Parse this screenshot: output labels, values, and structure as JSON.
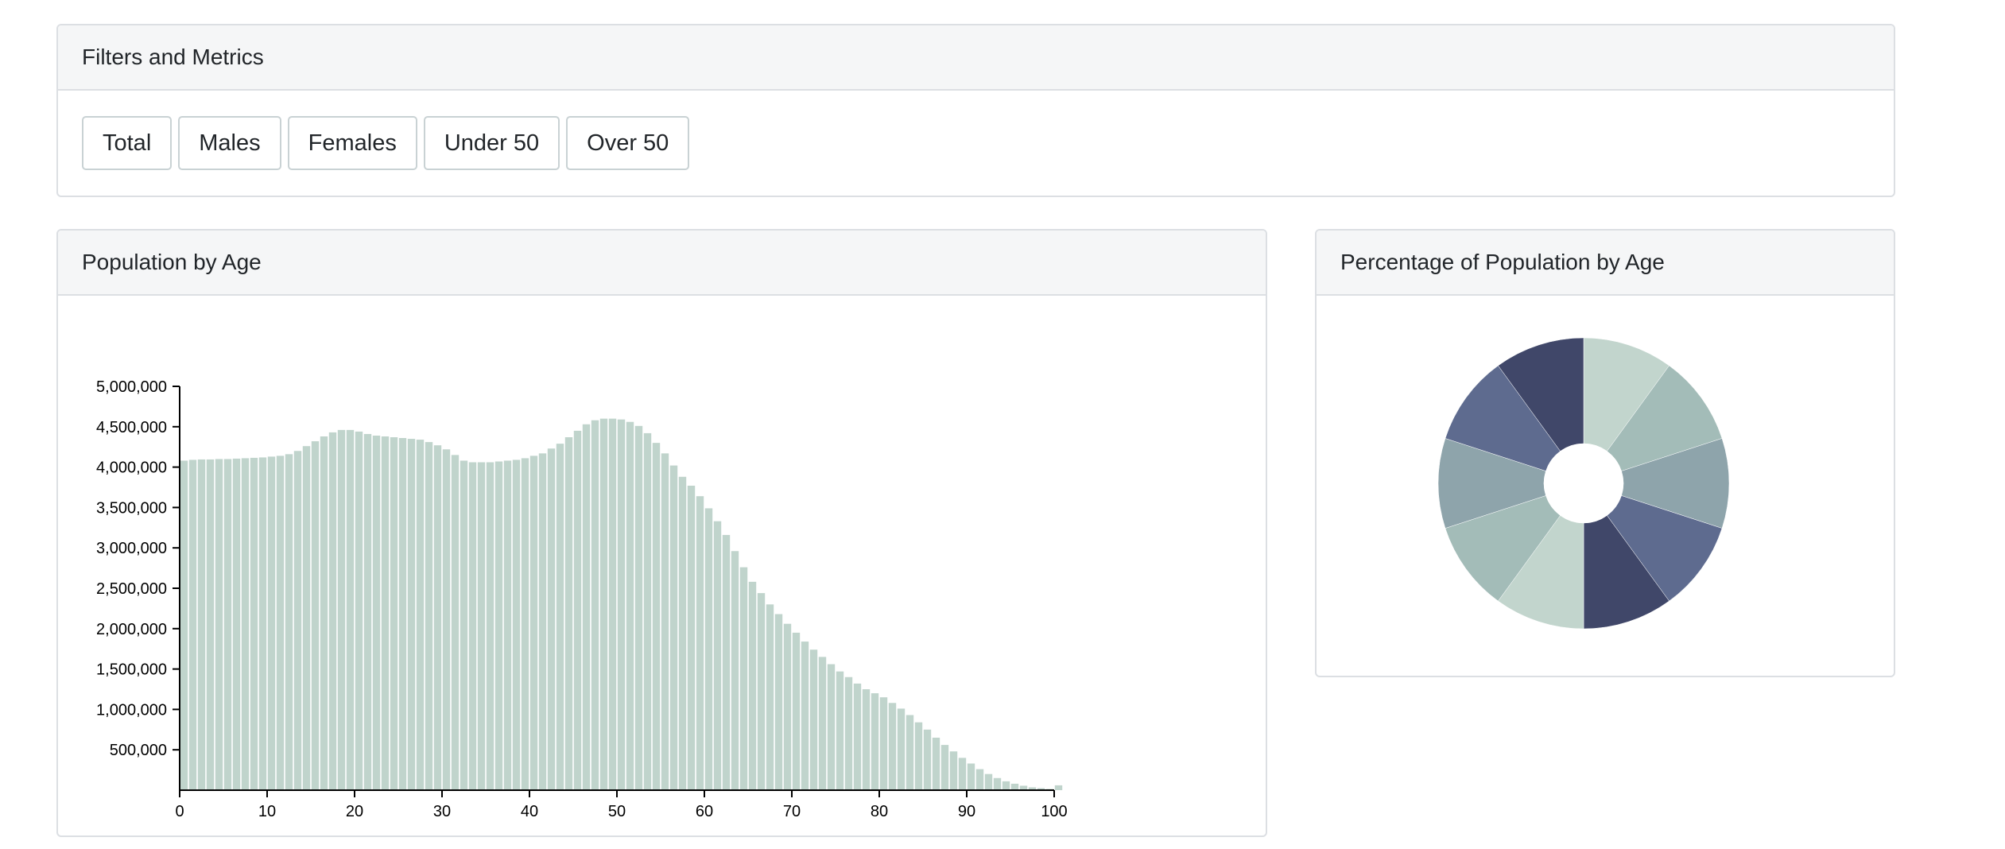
{
  "filters": {
    "title": "Filters and Metrics",
    "buttons": [
      "Total",
      "Males",
      "Females",
      "Under 50",
      "Over 50"
    ]
  },
  "bar_panel": {
    "title": "Population by Age"
  },
  "pie_panel": {
    "title": "Percentage of Population by Age"
  },
  "colors": {
    "bar": "#c0d4cc",
    "pie": [
      "#c2d5cd",
      "#a3bcb8",
      "#8ea4ab",
      "#5e6b8f",
      "#404769",
      "#c2d5cd",
      "#a3bcb8",
      "#8ea4ab",
      "#5e6b8f",
      "#404769"
    ]
  },
  "chart_data": [
    {
      "type": "bar",
      "x": [
        0,
        1,
        2,
        3,
        4,
        5,
        6,
        7,
        8,
        9,
        10,
        11,
        12,
        13,
        14,
        15,
        16,
        17,
        18,
        19,
        20,
        21,
        22,
        23,
        24,
        25,
        26,
        27,
        28,
        29,
        30,
        31,
        32,
        33,
        34,
        35,
        36,
        37,
        38,
        39,
        40,
        41,
        42,
        43,
        44,
        45,
        46,
        47,
        48,
        49,
        50,
        51,
        52,
        53,
        54,
        55,
        56,
        57,
        58,
        59,
        60,
        61,
        62,
        63,
        64,
        65,
        66,
        67,
        68,
        69,
        70,
        71,
        72,
        73,
        74,
        75,
        76,
        77,
        78,
        79,
        80,
        81,
        82,
        83,
        84,
        85,
        86,
        87,
        88,
        89,
        90,
        91,
        92,
        93,
        94,
        95,
        96,
        97,
        98,
        99,
        100
      ],
      "values": [
        4080000,
        4090000,
        4095000,
        4095000,
        4100000,
        4100000,
        4105000,
        4110000,
        4115000,
        4120000,
        4130000,
        4140000,
        4160000,
        4200000,
        4260000,
        4320000,
        4380000,
        4430000,
        4460000,
        4460000,
        4440000,
        4410000,
        4390000,
        4380000,
        4370000,
        4360000,
        4350000,
        4340000,
        4310000,
        4270000,
        4220000,
        4150000,
        4080000,
        4060000,
        4060000,
        4060000,
        4070000,
        4080000,
        4090000,
        4110000,
        4140000,
        4170000,
        4230000,
        4290000,
        4370000,
        4450000,
        4530000,
        4580000,
        4600000,
        4600000,
        4590000,
        4560000,
        4510000,
        4420000,
        4300000,
        4170000,
        4020000,
        3880000,
        3770000,
        3640000,
        3490000,
        3330000,
        3160000,
        2960000,
        2760000,
        2580000,
        2440000,
        2300000,
        2180000,
        2060000,
        1950000,
        1840000,
        1740000,
        1650000,
        1560000,
        1470000,
        1400000,
        1320000,
        1250000,
        1200000,
        1150000,
        1080000,
        1010000,
        930000,
        840000,
        750000,
        650000,
        560000,
        480000,
        400000,
        330000,
        260000,
        200000,
        150000,
        110000,
        80000,
        55000,
        35000,
        25000,
        15000,
        60000
      ],
      "xticks": [
        "0",
        "10",
        "20",
        "30",
        "40",
        "50",
        "60",
        "70",
        "80",
        "90",
        "100"
      ],
      "yticks": [
        "500,000",
        "1,000,000",
        "1,500,000",
        "2,000,000",
        "2,500,000",
        "3,000,000",
        "3,500,000",
        "4,000,000",
        "4,500,000",
        "5,000,000"
      ],
      "xlim": [
        0,
        100
      ],
      "ylim": [
        0,
        5000000
      ],
      "title": "",
      "xlabel": "",
      "ylabel": ""
    },
    {
      "type": "pie",
      "variant": "donut",
      "values": [
        10,
        10,
        10,
        10,
        10,
        10,
        10,
        10,
        10,
        10
      ]
    }
  ]
}
